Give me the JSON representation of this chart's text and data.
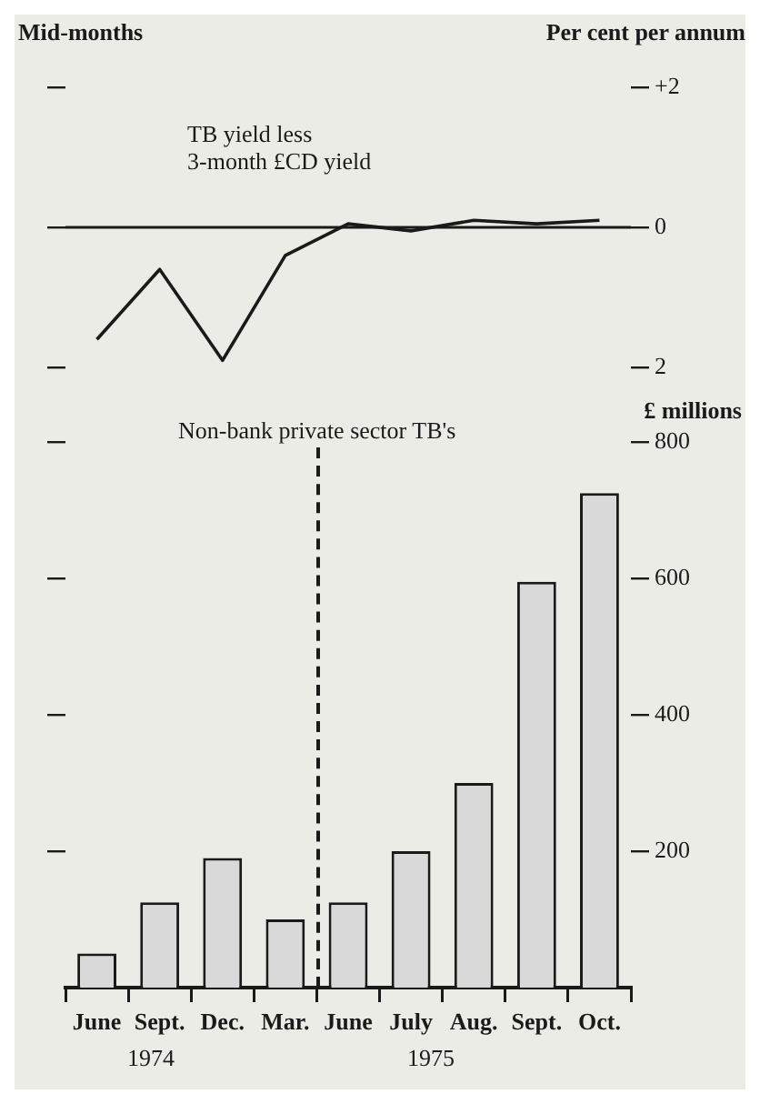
{
  "chart_data": [
    {
      "type": "line",
      "categories": [
        null,
        null,
        null,
        null,
        null,
        null,
        null,
        null,
        null
      ],
      "series": [
        {
          "name": "TB yield less 3-month £CD yield",
          "color": "#1a1a1a",
          "values": [
            -1.6,
            -0.6,
            -1.9,
            -0.4,
            0.05,
            -0.05,
            0.1,
            0.05,
            0.1
          ]
        }
      ],
      "ylim": [
        -2,
        2
      ],
      "yticks": [
        {
          "value": 2,
          "label": "+2"
        },
        0,
        {
          "value": -2,
          "label": "2"
        }
      ],
      "ylabel": "Per cent per annum",
      "annotations": [
        "Mid-months"
      ],
      "ref_lines": [
        {
          "axis": "y",
          "value": 0,
          "color": "#1a1a1a"
        }
      ],
      "tick_labels": "y",
      "marker": "none",
      "line_style": "solid",
      "grid": false,
      "legend": false
    },
    {
      "type": "bar",
      "categories": [
        "June",
        "Sept.",
        "Dec.",
        "Mar.",
        "June",
        "July",
        "Aug.",
        "Sept.",
        "Oct."
      ],
      "series": [
        {
          "name": "Non-bank private sector TB's",
          "color": "#d9d9d9",
          "values": [
            50,
            125,
            190,
            100,
            125,
            200,
            300,
            595,
            725
          ]
        }
      ],
      "ylim": [
        0,
        800
      ],
      "yticks": [
        200,
        400,
        600,
        800
      ],
      "ylabel": "£ millions",
      "annotations": [
        "1974",
        "1975"
      ],
      "grid": false,
      "legend": false
    }
  ]
}
